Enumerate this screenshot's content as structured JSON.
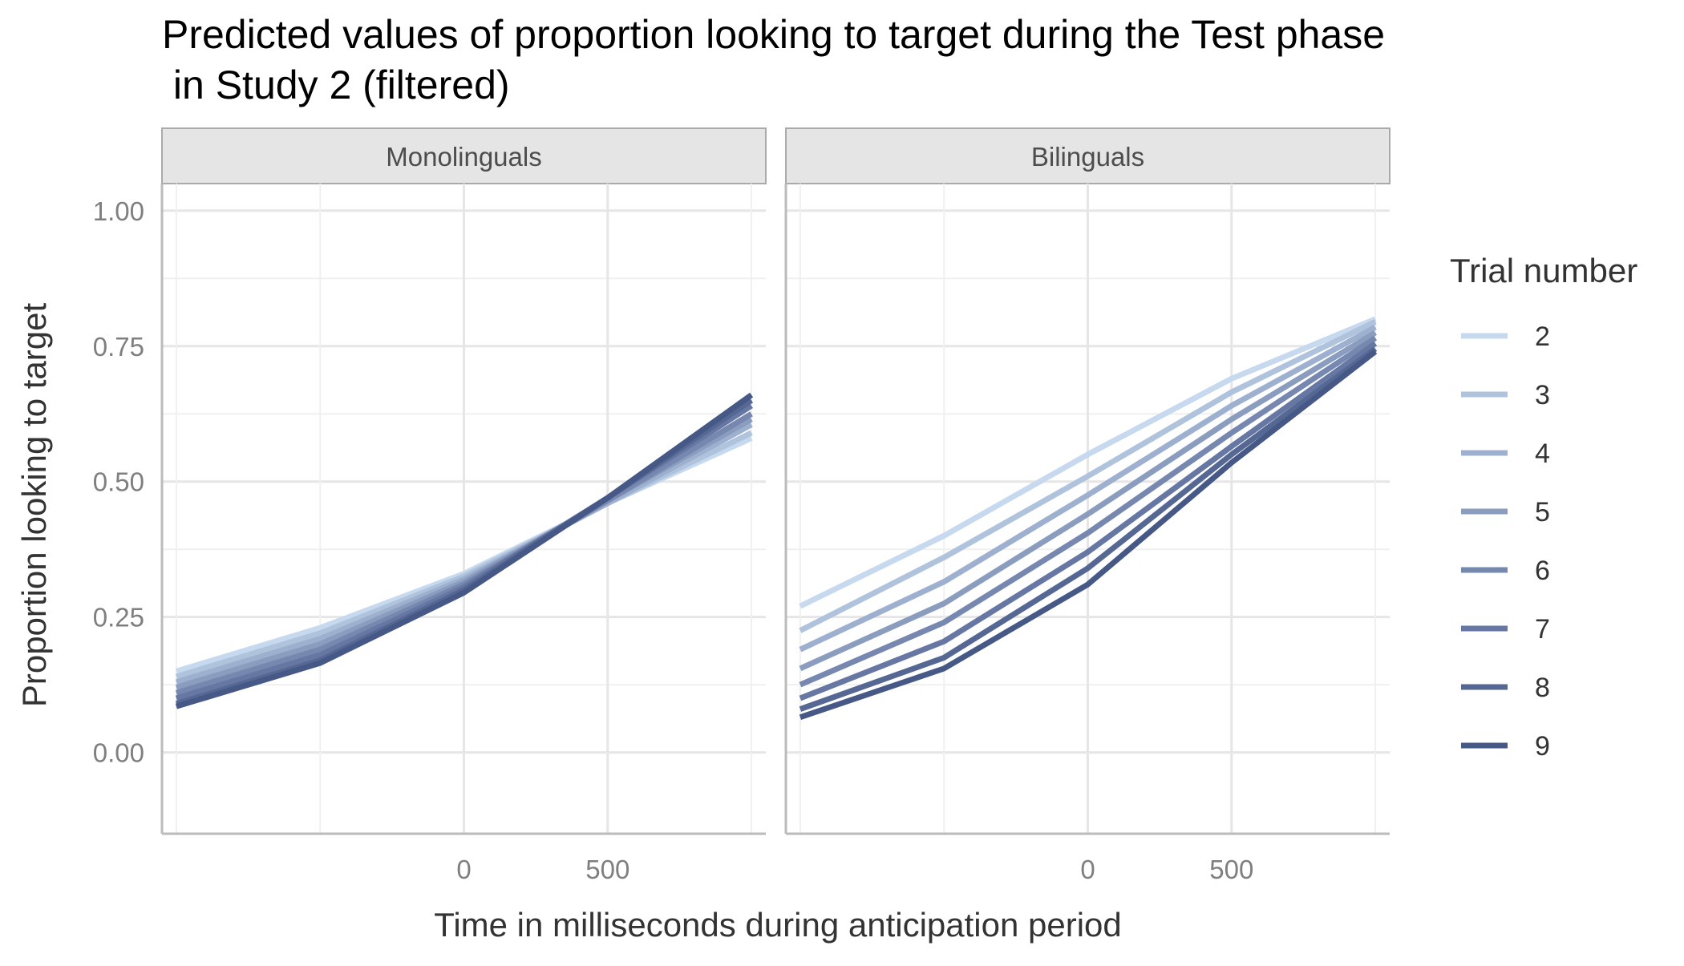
{
  "chart_data": {
    "type": "line",
    "title_line1": "Predicted values of proportion looking to target during the Test phase",
    "title_line2": " in Study 2 (filtered)",
    "xlabel": "Time in milliseconds during anticipation period",
    "ylabel": "Proportion looking to target",
    "xlim": [
      -1050,
      1050
    ],
    "ylim": [
      -0.15,
      1.05
    ],
    "x_ticks": [
      0,
      500
    ],
    "y_ticks": [
      0.0,
      0.25,
      0.5,
      0.75,
      1.0
    ],
    "y_tick_labels": [
      "0.00",
      "0.25",
      "0.50",
      "0.75",
      "1.00"
    ],
    "grid": true,
    "legend": {
      "title": "Trial number",
      "placement": "right",
      "entries": [
        "2",
        "3",
        "4",
        "5",
        "6",
        "7",
        "8",
        "9"
      ]
    },
    "series_colors": [
      "#c6d9ee",
      "#afc3dd",
      "#9eb0cf",
      "#8a9dbf",
      "#7788b0",
      "#6677a3",
      "#556793",
      "#465886"
    ],
    "panels": [
      {
        "label": "Monolinguals",
        "x": [
          -1000,
          -500,
          0,
          500,
          1000
        ],
        "series": [
          {
            "name": "2",
            "values": [
              0.15,
              0.23,
              0.33,
              0.46,
              0.58
            ]
          },
          {
            "name": "3",
            "values": [
              0.14,
              0.22,
              0.325,
              0.46,
              0.59
            ]
          },
          {
            "name": "4",
            "values": [
              0.13,
              0.21,
              0.32,
              0.46,
              0.605
            ]
          },
          {
            "name": "5",
            "values": [
              0.12,
              0.2,
              0.315,
              0.465,
              0.615
            ]
          },
          {
            "name": "6",
            "values": [
              0.11,
              0.19,
              0.31,
              0.465,
              0.625
            ]
          },
          {
            "name": "7",
            "values": [
              0.1,
              0.18,
              0.305,
              0.47,
              0.64
            ]
          },
          {
            "name": "8",
            "values": [
              0.09,
              0.17,
              0.3,
              0.47,
              0.65
            ]
          },
          {
            "name": "9",
            "values": [
              0.085,
              0.165,
              0.295,
              0.47,
              0.66
            ]
          }
        ]
      },
      {
        "label": "Bilinguals",
        "x": [
          -1000,
          -500,
          0,
          500,
          1000
        ],
        "series": [
          {
            "name": "2",
            "values": [
              0.27,
              0.4,
              0.55,
              0.69,
              0.8
            ]
          },
          {
            "name": "3",
            "values": [
              0.225,
              0.36,
              0.51,
              0.665,
              0.795
            ]
          },
          {
            "name": "4",
            "values": [
              0.19,
              0.315,
              0.475,
              0.64,
              0.785
            ]
          },
          {
            "name": "5",
            "values": [
              0.155,
              0.275,
              0.44,
              0.615,
              0.775
            ]
          },
          {
            "name": "6",
            "values": [
              0.125,
              0.24,
              0.405,
              0.59,
              0.765
            ]
          },
          {
            "name": "7",
            "values": [
              0.1,
              0.205,
              0.37,
              0.565,
              0.755
            ]
          },
          {
            "name": "8",
            "values": [
              0.08,
              0.175,
              0.34,
              0.55,
              0.745
            ]
          },
          {
            "name": "9",
            "values": [
              0.065,
              0.155,
              0.31,
              0.535,
              0.74
            ]
          }
        ]
      }
    ]
  }
}
